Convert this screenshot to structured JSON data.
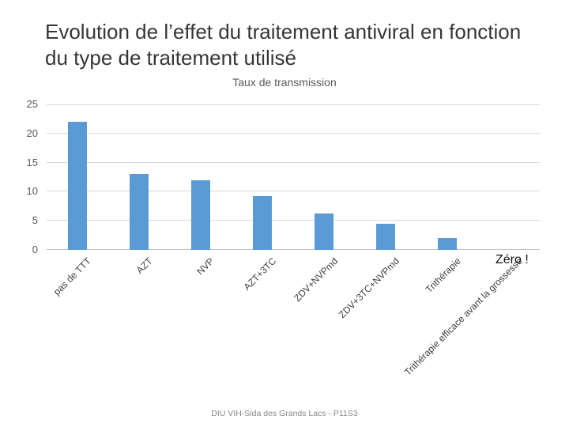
{
  "slide": {
    "title": "Evolution de l’effet du traitement antiviral en fonction du type de traitement utilisé",
    "annotation": "Zéro !",
    "footer": "DIU VIH-Sida des Grands Lacs - P11S3"
  },
  "chart_data": {
    "type": "bar",
    "title": "Taux de transmission",
    "categories": [
      "pas de TTT",
      "AZT",
      "NVP",
      "AZT+3TC",
      "ZDV+NVPmd",
      "ZDV+3TC+NVPmd",
      "Trithérapie",
      "Trithérapie efficace avant la grossesse"
    ],
    "values": [
      22,
      13,
      12,
      9.3,
      6.3,
      4.5,
      2,
      0
    ],
    "xlabel": "",
    "ylabel": "",
    "ylim": [
      0,
      25
    ],
    "yticks": [
      0,
      5,
      10,
      15,
      20,
      25
    ],
    "grid": true,
    "legend": false,
    "x_tick_rotation": -45,
    "bar_color": "#5B9BD5"
  }
}
